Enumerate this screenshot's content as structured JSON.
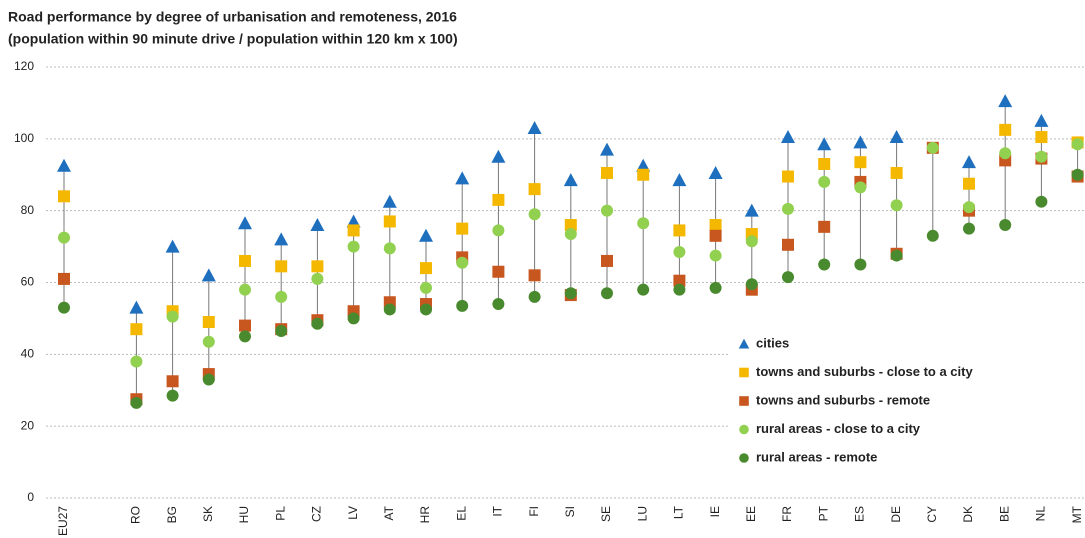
{
  "chart_data": {
    "type": "dot",
    "title": "Road performance by degree of urbanisation and remoteness, 2016",
    "subtitle": "(population within 90 minute drive / population within 120 km x 100)",
    "categories": [
      "EU27",
      null,
      "RO",
      "BG",
      "SK",
      "HU",
      "PL",
      "CZ",
      "LV",
      "AT",
      "HR",
      "EL",
      "IT",
      "FI",
      "SI",
      "SE",
      "LU",
      "LT",
      "IE",
      "EE",
      "FR",
      "PT",
      "ES",
      "DE",
      "CY",
      "DK",
      "BE",
      "NL",
      "MT"
    ],
    "series": [
      {
        "name": "cities",
        "color": "#1f6fbf",
        "marker": "triangle",
        "values": [
          92.5,
          null,
          53,
          70,
          62,
          76.5,
          72,
          76,
          77,
          82.5,
          73,
          89,
          95,
          103,
          88.5,
          97,
          92.5,
          88.5,
          90.5,
          80,
          100.5,
          98.5,
          99,
          100.5,
          null,
          93.5,
          110.5,
          105,
          null
        ]
      },
      {
        "name": "towns and suburbs - close to a city",
        "color": "#f5b800",
        "marker": "square",
        "values": [
          84,
          null,
          47,
          52,
          49,
          66,
          64.5,
          64.5,
          74.5,
          77,
          64,
          75,
          83,
          86,
          76,
          90.5,
          90,
          74.5,
          76,
          73.5,
          89.5,
          93,
          93.5,
          90.5,
          null,
          87.5,
          102.5,
          100.5,
          99
        ]
      },
      {
        "name": "towns and suburbs - remote",
        "color": "#c8561f",
        "marker": "square",
        "values": [
          61,
          null,
          27.5,
          32.5,
          34.5,
          48,
          47,
          49.5,
          52,
          54.5,
          54,
          67,
          63,
          62,
          56.5,
          66,
          null,
          60.5,
          73,
          58,
          70.5,
          75.5,
          88,
          68,
          97.5,
          80,
          94,
          94.5,
          89.5
        ]
      },
      {
        "name": "rural areas - close to a city",
        "color": "#92d050",
        "marker": "circle",
        "values": [
          72.5,
          null,
          38,
          50.5,
          43.5,
          58,
          56,
          61,
          70,
          69.5,
          58.5,
          65.5,
          74.5,
          79,
          73.5,
          80,
          76.5,
          68.5,
          67.5,
          71.5,
          80.5,
          88,
          86.5,
          81.5,
          97.5,
          81,
          96,
          95,
          98.5
        ]
      },
      {
        "name": "rural areas - remote",
        "color": "#4a8a2e",
        "marker": "circle",
        "values": [
          53,
          null,
          26.5,
          28.5,
          33,
          45,
          46.5,
          48.5,
          50,
          52.5,
          52.5,
          53.5,
          54,
          56,
          57,
          57,
          58,
          58,
          58.5,
          59.5,
          61.5,
          65,
          65,
          67.5,
          73,
          75,
          76,
          82.5,
          90
        ]
      }
    ],
    "ylim": [
      0,
      120
    ],
    "yticks": [
      0,
      20,
      40,
      60,
      80,
      100,
      120
    ],
    "grid": true,
    "legend": "lower right"
  }
}
